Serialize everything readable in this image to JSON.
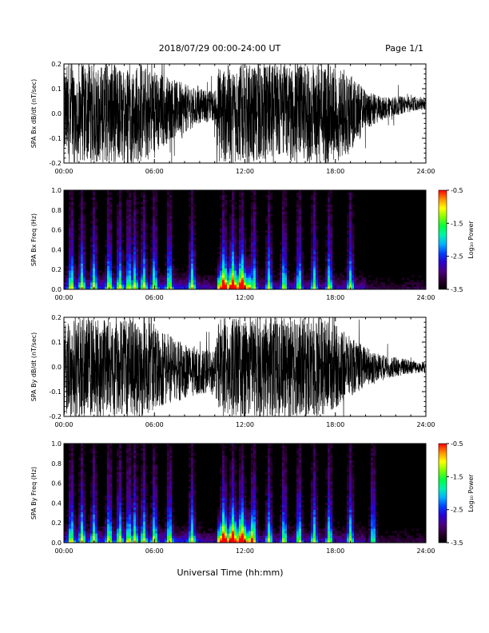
{
  "header": {
    "title": "2018/07/29  00:00-24:00 UT",
    "page": "Page 1/1"
  },
  "colors": {
    "trace": "#000000",
    "spectrogram_background": "#000000",
    "colormap": [
      "#000000",
      "#2a0030",
      "#4b0080",
      "#2b00d0",
      "#0040ff",
      "#00b0ff",
      "#00f0b0",
      "#00ff40",
      "#80ff00",
      "#ffff00",
      "#ff9000",
      "#ff0000"
    ]
  },
  "chart_data": [
    {
      "type": "line",
      "panel": "SPA Bx waveform",
      "ylabel": "SPA Bx dB/dt (nT/sec)",
      "xlim": [
        "00:00",
        "24:00"
      ],
      "ylim": [
        -0.2,
        0.2
      ],
      "x_ticks": [
        "00:00",
        "06:00",
        "12:00",
        "18:00",
        "24:00"
      ],
      "y_ticks": [
        "-0.2",
        "-0.1",
        "0.0",
        "0.1",
        "0.2"
      ],
      "series": [
        {
          "x_hours": [
            0,
            1,
            2,
            3,
            4,
            5,
            6,
            7,
            8,
            9,
            10,
            10.3,
            11,
            12,
            13,
            14,
            15,
            16,
            17,
            18,
            19,
            20,
            21,
            22,
            23,
            24
          ],
          "amplitude": [
            0.2,
            0.2,
            0.2,
            0.2,
            0.2,
            0.2,
            0.18,
            0.13,
            0.1,
            0.07,
            0.06,
            0.2,
            0.2,
            0.2,
            0.2,
            0.2,
            0.2,
            0.2,
            0.2,
            0.2,
            0.16,
            0.08,
            0.05,
            0.04,
            0.03,
            0.025
          ],
          "center": [
            0,
            0,
            0,
            0,
            0,
            0,
            0,
            0.02,
            0.02,
            0.03,
            0.03,
            0,
            0,
            0,
            0,
            0,
            0,
            0,
            0,
            0,
            0,
            0.01,
            0.02,
            0.03,
            0.04,
            0.04
          ]
        }
      ]
    },
    {
      "type": "heatmap",
      "panel": "SPA Bx spectrogram",
      "ylabel": "SPA Bx Freq (Hz)",
      "xlim": [
        "00:00",
        "24:00"
      ],
      "ylim": [
        0.0,
        1.0
      ],
      "x_ticks": [
        "00:00",
        "06:00",
        "12:00",
        "18:00",
        "24:00"
      ],
      "y_ticks": [
        "0.0",
        "0.2",
        "0.4",
        "0.6",
        "0.8",
        "1.0"
      ],
      "colorbar_label": "Log₁₀ Power",
      "colorbar_range": [
        -3.5,
        -0.5
      ],
      "colorbar_ticks": [
        "-0.5",
        "-1.5",
        "-2.5",
        "-3.5"
      ],
      "burst_hours": [
        0.5,
        1.2,
        2.0,
        3.0,
        3.7,
        4.3,
        4.7,
        5.3,
        6.0,
        7.0,
        8.5,
        10.6,
        11.2,
        11.8,
        12.6,
        13.6,
        14.6,
        15.6,
        16.6,
        17.6,
        19.0
      ],
      "broadband_intervals": [
        [
          10.2,
          12.4
        ]
      ]
    },
    {
      "type": "line",
      "panel": "SPA By waveform",
      "ylabel": "SPA By dB/dt (nT/sec)",
      "xlim": [
        "00:00",
        "24:00"
      ],
      "ylim": [
        -0.2,
        0.2
      ],
      "x_ticks": [
        "00:00",
        "06:00",
        "12:00",
        "18:00",
        "24:00"
      ],
      "y_ticks": [
        "-0.2",
        "-0.1",
        "0.0",
        "0.1",
        "0.2"
      ],
      "series": [
        {
          "x_hours": [
            0,
            1,
            2,
            3,
            4,
            5,
            6,
            7,
            8,
            9,
            10,
            10.3,
            11,
            12,
            13,
            14,
            15,
            16,
            17,
            18,
            19,
            20,
            21,
            22,
            23,
            24
          ],
          "amplitude": [
            0.2,
            0.2,
            0.2,
            0.2,
            0.2,
            0.2,
            0.18,
            0.14,
            0.11,
            0.09,
            0.08,
            0.2,
            0.2,
            0.2,
            0.2,
            0.2,
            0.2,
            0.2,
            0.2,
            0.17,
            0.12,
            0.08,
            0.05,
            0.04,
            0.03,
            0.02
          ],
          "center": [
            0,
            0,
            0,
            0,
            0,
            0,
            0,
            -0.01,
            -0.02,
            -0.02,
            -0.02,
            0,
            0,
            0,
            0,
            0,
            0,
            0,
            0,
            0,
            0,
            0,
            0,
            0,
            0,
            0
          ]
        }
      ]
    },
    {
      "type": "heatmap",
      "panel": "SPA By spectrogram",
      "ylabel": "SPA By Freq (Hz)",
      "xlim": [
        "00:00",
        "24:00"
      ],
      "ylim": [
        0.0,
        1.0
      ],
      "x_ticks": [
        "00:00",
        "06:00",
        "12:00",
        "18:00",
        "24:00"
      ],
      "y_ticks": [
        "0.0",
        "0.2",
        "0.4",
        "0.6",
        "0.8",
        "1.0"
      ],
      "colorbar_label": "Log₁₀ Power",
      "colorbar_range": [
        -3.5,
        -0.5
      ],
      "colorbar_ticks": [
        "-0.5",
        "-1.5",
        "-2.5",
        "-3.5"
      ],
      "burst_hours": [
        0.5,
        1.2,
        2.0,
        3.0,
        3.7,
        4.3,
        4.7,
        5.3,
        6.0,
        7.0,
        8.5,
        10.6,
        11.2,
        11.8,
        12.6,
        13.6,
        14.6,
        15.6,
        16.6,
        17.6,
        19.0,
        20.5
      ],
      "broadband_intervals": [
        [
          10.2,
          12.6
        ]
      ]
    }
  ],
  "footer": {
    "xlabel": "Universal Time (hh:mm)"
  }
}
